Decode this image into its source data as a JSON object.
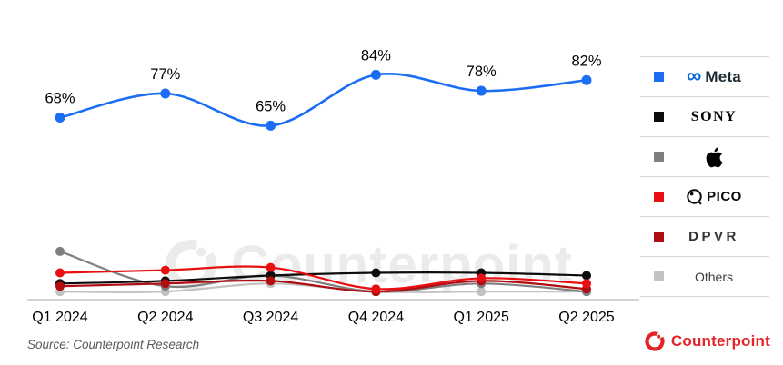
{
  "chart_data": {
    "type": "line",
    "title": "",
    "categories": [
      "Q1 2024",
      "Q2 2024",
      "Q3 2024",
      "Q4 2024",
      "Q1 2025",
      "Q2 2025"
    ],
    "unit": "%",
    "ylim": [
      0,
      100
    ],
    "grid": false,
    "legend_position": "right",
    "series": [
      {
        "name": "Meta",
        "color": "#1b6ef3",
        "values": [
          68,
          77,
          65,
          84,
          78,
          82
        ],
        "labeled": true,
        "point_labels": [
          "68%",
          "77%",
          "65%",
          "84%",
          "78%",
          "82%"
        ]
      },
      {
        "name": "Sony",
        "color": "#0d0d0d",
        "values": [
          6,
          7,
          9,
          10,
          10,
          9
        ],
        "labeled": false
      },
      {
        "name": "Apple",
        "color": "#7f7f7f",
        "values": [
          18,
          5,
          9,
          3,
          6,
          3
        ],
        "labeled": false
      },
      {
        "name": "PICO",
        "color": "#e90e10",
        "values": [
          10,
          11,
          12,
          4,
          8,
          6
        ],
        "labeled": false
      },
      {
        "name": "DPVR",
        "color": "#b00d12",
        "values": [
          5,
          6,
          7,
          3,
          7,
          4
        ],
        "labeled": false
      },
      {
        "name": "Others",
        "color": "#c2c2c2",
        "values": [
          3,
          3,
          6,
          3,
          3,
          3
        ],
        "labeled": false
      }
    ]
  },
  "legend": {
    "items": [
      {
        "name": "meta",
        "label": "Meta",
        "icon_char": "∞",
        "color": "#1b6ef3"
      },
      {
        "name": "sony",
        "label": "SONY",
        "color": "#0d0d0d"
      },
      {
        "name": "apple",
        "label": "",
        "color": "#7f7f7f"
      },
      {
        "name": "pico",
        "label": "PICO",
        "color": "#e90e10"
      },
      {
        "name": "dpvr",
        "label": "DPVR",
        "color": "#b00d12"
      },
      {
        "name": "others",
        "label": "Others",
        "color": "#c2c2c2"
      }
    ]
  },
  "watermark": {
    "text": "Counterpoint",
    "color": "#ebebeb"
  },
  "footer": {
    "source_text": "Source: Counterpoint Research",
    "brand_text": "Counterpoint",
    "brand_color": "#e32528"
  }
}
